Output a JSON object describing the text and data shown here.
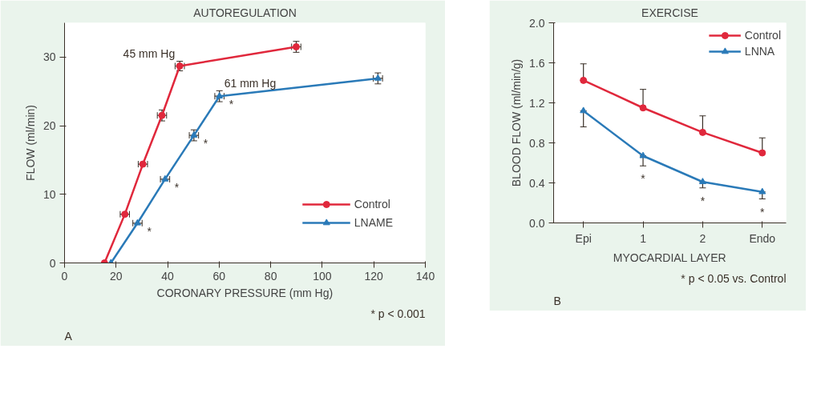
{
  "chart_data": [
    {
      "type": "line",
      "title": "AUTOREGULATION",
      "xlabel": "CORONARY PRESSURE (mm Hg)",
      "ylabel": "FLOW (ml/min)",
      "xlim": [
        0,
        140
      ],
      "xticks": [
        0,
        20,
        40,
        60,
        80,
        100,
        120,
        140
      ],
      "ylim": [
        0,
        35
      ],
      "yticks": [
        0,
        10,
        20,
        30
      ],
      "grid": false,
      "legend": "bottom right",
      "line_style": "solid",
      "series": [
        {
          "name": "Control",
          "color": "#e0283c",
          "marker": "circle",
          "x": [
            15.5,
            23.4,
            30.4,
            37.8,
            44.7,
            89.9
          ],
          "values": [
            0,
            7.1,
            14.4,
            21.5,
            28.7,
            31.5
          ],
          "errors": [
            null,
            null,
            null,
            0.8,
            0.7,
            0.8
          ],
          "xerrors": [
            null,
            1.8,
            1.8,
            1.8,
            1.8,
            1.8
          ]
        },
        {
          "name": "LNAME",
          "color": "#2a7ab8",
          "marker": "triangle",
          "x": [
            18,
            28.3,
            39,
            50.2,
            60.1,
            121.6
          ],
          "values": [
            0,
            5.8,
            12.2,
            18.6,
            24.3,
            26.9
          ],
          "errors": [
            null,
            null,
            null,
            0.8,
            0.8,
            0.8
          ],
          "xerrors": [
            null,
            1.8,
            1.8,
            1.8,
            1.8,
            1.8
          ]
        }
      ],
      "annotations": [
        {
          "text": "45 mm Hg",
          "x": 44.7,
          "y": 28.7
        },
        {
          "text": "61 mm Hg",
          "x": 60.1,
          "y": 24.3
        },
        {
          "text": "*",
          "x": 28.3,
          "y": 5.8
        },
        {
          "text": "*",
          "x": 39,
          "y": 12.2
        },
        {
          "text": "*",
          "x": 50.2,
          "y": 18.6
        },
        {
          "text": "*",
          "x": 60.1,
          "y": 24.3
        },
        "* p < 0.001",
        "A"
      ]
    },
    {
      "type": "line",
      "title": "EXERCISE",
      "xlabel": "MYOCARDIAL LAYER",
      "ylabel": "BLOOD FLOW (ml/min/g)",
      "categories": [
        "Epi",
        "1",
        "2",
        "Endo"
      ],
      "ylim": [
        0,
        2.0
      ],
      "yticks": [
        {
          "value": 0,
          "label": "0.0"
        },
        0.4,
        0.8,
        1.2,
        1.6,
        {
          "value": 2,
          "label": "2.0"
        }
      ],
      "grid": false,
      "legend": "top right",
      "line_style": "solid",
      "series": [
        {
          "name": "Control",
          "color": "#e0283c",
          "marker": "circle",
          "values": [
            1.425,
            1.15,
            0.905,
            0.7
          ],
          "errors": [
            [
              1.425,
              1.59
            ],
            [
              1.15,
              1.335
            ],
            [
              0.905,
              1.07
            ],
            [
              0.7,
              0.85
            ]
          ]
        },
        {
          "name": "LNNA",
          "color": "#2a7ab8",
          "marker": "triangle",
          "values": [
            1.12,
            0.67,
            0.41,
            0.31
          ],
          "errors": [
            [
              0.96,
              1.12
            ],
            [
              0.57,
              0.67
            ],
            [
              0.35,
              0.41
            ],
            [
              0.24,
              0.31
            ]
          ]
        }
      ],
      "annotations": [
        {
          "text": "*",
          "x": "1",
          "y": 0.57
        },
        {
          "text": "*",
          "x": "2",
          "y": 0.35
        },
        {
          "text": "*",
          "x": "Endo",
          "y": 0.24
        },
        "* p < 0.05 vs. Control",
        "B"
      ]
    }
  ]
}
